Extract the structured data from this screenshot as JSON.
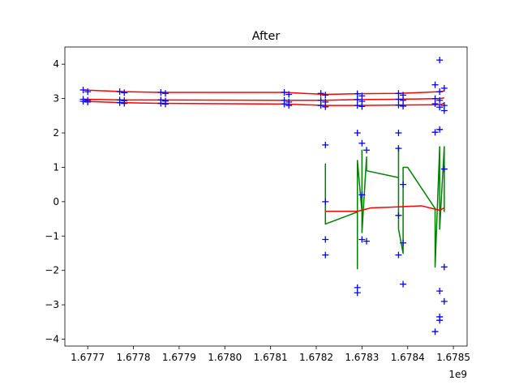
{
  "chart_data": {
    "type": "line",
    "title": "After",
    "xlabel": "",
    "ylabel": "",
    "x_offset_text": "1e9",
    "xlim": [
      1.67765,
      1.67853
    ],
    "ylim": [
      -4.2,
      4.5
    ],
    "x_tick_values": [
      1.6777,
      1.6778,
      1.6779,
      1.678,
      1.6781,
      1.6782,
      1.6783,
      1.6784,
      1.6785
    ],
    "x_tick_labels": [
      "1.6777",
      "1.6778",
      "1.6779",
      "1.6780",
      "1.6781",
      "1.6782",
      "1.6783",
      "1.6784",
      "1.6785"
    ],
    "y_tick_values": [
      -4,
      -3,
      -2,
      -1,
      0,
      1,
      2,
      3,
      4
    ],
    "y_tick_labels": [
      "−4",
      "−3",
      "−2",
      "−1",
      "0",
      "1",
      "2",
      "3",
      "4"
    ],
    "grid": false,
    "colors": {
      "markers": "#0000ff",
      "fit_lines": "#ff0000",
      "noisy_line": "#008000",
      "band_lines": "#d62728"
    },
    "red_lines": [
      {
        "x": [
          1.67769,
          1.67778,
          1.67786,
          1.67813,
          1.67822,
          1.67829,
          1.67838,
          1.67847,
          1.67848
        ],
        "y": [
          3.25,
          3.2,
          3.18,
          3.18,
          3.12,
          3.14,
          3.15,
          3.2,
          3.22
        ]
      },
      {
        "x": [
          1.67769,
          1.67778,
          1.67786,
          1.67813,
          1.67822,
          1.67829,
          1.67838,
          1.67847,
          1.67848
        ],
        "y": [
          2.98,
          2.96,
          2.96,
          2.95,
          2.95,
          2.97,
          2.98,
          3.0,
          3.02
        ]
      },
      {
        "x": [
          1.67769,
          1.67778,
          1.67786,
          1.67813,
          1.67822,
          1.67829,
          1.67838,
          1.67847,
          1.67848
        ],
        "y": [
          2.92,
          2.88,
          2.86,
          2.84,
          2.8,
          2.8,
          2.81,
          2.82,
          2.86
        ]
      },
      {
        "x": [
          1.67822,
          1.67829,
          1.67832,
          1.67838,
          1.67843,
          1.67847,
          1.67848
        ],
        "y": [
          -0.28,
          -0.28,
          -0.18,
          -0.15,
          -0.12,
          -0.25,
          -0.18
        ]
      }
    ],
    "green_line": {
      "x": [
        1.67822,
        1.67822,
        1.67822,
        1.67829,
        1.67829,
        1.67829,
        1.6783,
        1.6783,
        1.6783,
        1.67831,
        1.67831,
        1.67838,
        1.67838,
        1.67838,
        1.67839,
        1.67839,
        1.6784,
        1.67846,
        1.67846,
        1.67847,
        1.67847,
        1.67848,
        1.67848
      ],
      "y": [
        -0.1,
        1.1,
        -0.65,
        -0.3,
        -1.95,
        1.2,
        -0.3,
        1.5,
        -0.9,
        1.3,
        0.9,
        0.7,
        1.6,
        -0.8,
        -1.5,
        1.0,
        1.0,
        -0.2,
        -1.9,
        1.6,
        -0.8,
        1.6,
        -0.3
      ]
    },
    "markers": {
      "x": [
        1.67769,
        1.6777,
        1.67769,
        1.6777,
        1.67769,
        1.6777,
        1.67777,
        1.67778,
        1.67777,
        1.67778,
        1.67777,
        1.67778,
        1.67786,
        1.67787,
        1.67786,
        1.67787,
        1.67786,
        1.67787,
        1.67813,
        1.67814,
        1.67813,
        1.67814,
        1.67813,
        1.67814,
        1.67821,
        1.67822,
        1.67821,
        1.67822,
        1.67821,
        1.67822,
        1.67829,
        1.6783,
        1.67829,
        1.6783,
        1.67829,
        1.6783,
        1.67838,
        1.67839,
        1.67838,
        1.67839,
        1.67838,
        1.67839,
        1.67846,
        1.67847,
        1.67848,
        1.67846,
        1.67847,
        1.67848,
        1.67846,
        1.67847,
        1.67848,
        1.67822,
        1.67822,
        1.67822,
        1.67822,
        1.67829,
        1.67829,
        1.67829,
        1.6783,
        1.6783,
        1.6783,
        1.67831,
        1.67831,
        1.67838,
        1.67838,
        1.67838,
        1.67838,
        1.67839,
        1.67839,
        1.67839,
        1.67847,
        1.67847,
        1.67847,
        1.67847,
        1.67847,
        1.67848,
        1.67848,
        1.67848,
        1.67846,
        1.67846
      ],
      "y": [
        3.25,
        3.2,
        2.98,
        2.95,
        2.92,
        2.9,
        3.2,
        3.17,
        2.96,
        2.94,
        2.88,
        2.86,
        3.18,
        3.15,
        2.96,
        2.93,
        2.86,
        2.84,
        3.18,
        3.12,
        2.95,
        2.9,
        2.84,
        2.8,
        3.15,
        3.1,
        2.95,
        2.9,
        2.8,
        2.76,
        3.14,
        3.08,
        2.97,
        2.92,
        2.8,
        2.77,
        3.15,
        3.1,
        2.98,
        2.95,
        2.81,
        2.78,
        3.4,
        3.2,
        3.3,
        3.0,
        2.95,
        2.8,
        2.85,
        2.75,
        2.65,
        1.65,
        0.0,
        -1.1,
        -1.55,
        2.0,
        -2.5,
        -2.65,
        1.7,
        0.2,
        -1.1,
        1.5,
        -1.15,
        2.0,
        1.55,
        -0.4,
        -1.55,
        -2.4,
        0.5,
        -1.2,
        4.12,
        2.1,
        -2.6,
        -3.35,
        -3.45,
        0.95,
        -1.9,
        -2.9,
        -3.78,
        2.02
      ]
    }
  }
}
